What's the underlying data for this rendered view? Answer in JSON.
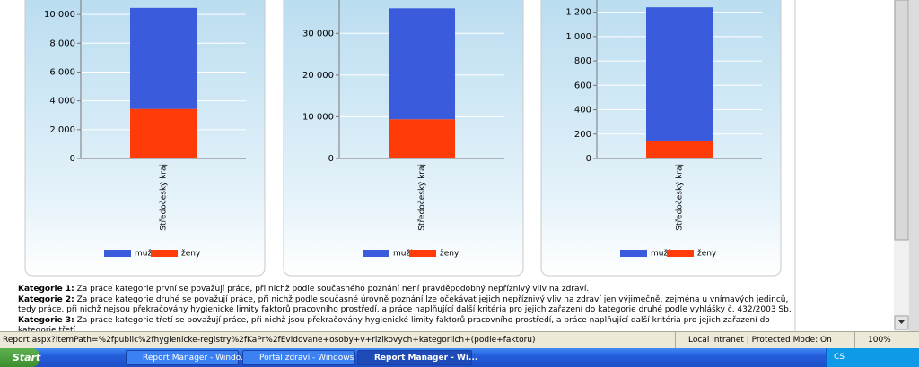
{
  "chart_data": [
    {
      "type": "bar",
      "stacked": true,
      "categories": [
        "Středočeský kraj"
      ],
      "series": [
        {
          "name": "muži",
          "color": "#3a5bdc",
          "values": [
            7010
          ]
        },
        {
          "name": "ženy",
          "color": "#ff3b0a",
          "values": [
            3440
          ]
        }
      ],
      "ylim": [
        0,
        11000
      ],
      "yticks": [
        0,
        {
          "value": 2000,
          "label": "2 000"
        },
        {
          "value": 4000,
          "label": "4 000"
        },
        {
          "value": 6000,
          "label": "6 000"
        },
        {
          "value": 8000,
          "label": "8 000"
        },
        {
          "value": 10000,
          "label": "10 000"
        }
      ],
      "grid": true,
      "legend": "bottom"
    },
    {
      "type": "bar",
      "stacked": true,
      "categories": [
        "Středočeský kraj"
      ],
      "series": [
        {
          "name": "muži",
          "color": "#3a5bdc",
          "values": [
            26600
          ]
        },
        {
          "name": "ženy",
          "color": "#ff3b0a",
          "values": [
            9400
          ]
        }
      ],
      "ylim": [
        0,
        38000
      ],
      "yticks": [
        0,
        {
          "value": 10000,
          "label": "10 000"
        },
        {
          "value": 20000,
          "label": "20 000"
        },
        {
          "value": 30000,
          "label": "30 000"
        }
      ],
      "grid": true,
      "legend": "bottom"
    },
    {
      "type": "bar",
      "stacked": true,
      "categories": [
        "Středočeský kraj"
      ],
      "series": [
        {
          "name": "muži",
          "color": "#3a5bdc",
          "values": [
            1098
          ]
        },
        {
          "name": "ženy",
          "color": "#ff3b0a",
          "values": [
            142
          ]
        }
      ],
      "ylim": [
        0,
        1300
      ],
      "yticks": [
        0,
        200,
        400,
        600,
        800,
        {
          "value": 1000,
          "label": "1 000"
        },
        {
          "value": 1200,
          "label": "1 200"
        }
      ],
      "grid": true,
      "legend": "bottom"
    }
  ],
  "page": {
    "descriptions": [
      {
        "label": "Kategorie 1:",
        "text": "Za práce kategorie první se považují práce, při nichž podle současného poznání není pravděpodobný nepříznivý vliv na zdraví."
      },
      {
        "label": "Kategorie 2:",
        "text": "Za práce kategorie druhé se považují práce, při nichž podle současné úrovně poznání lze očekávat jejich nepříznivý vliv na zdraví jen výjimečně, zejména u vnímavých jedinců, tedy práce, při nichž nejsou překračovány hygienické limity faktorů pracovního prostředí, a práce naplňující další kritéria pro jejich zařazení do kategorie druhé podle vyhlášky č. 432/2003 Sb."
      },
      {
        "label": "Kategorie 3:",
        "text": "Za práce kategorie třetí se považují práce, při nichž jsou překračovány hygienické limity faktorů pracovního prostředí, a práce naplňující další kritéria pro jejich zařazení do kategorie třetí"
      }
    ],
    "status_url": "Report.aspx?ItemPath=%2fpublic%2fhygienicke-registry%2fKaPr%2fEvidovane+osoby+v+rizikovych+kategoriich+(podle+faktoru)",
    "status_zone": "Local intranet | Protected Mode: On",
    "status_zoom": "100%",
    "taskbar": {
      "start": "Start",
      "tasks": [
        "Report Manager - Windo...",
        "Portál zdraví - Windows I...",
        "Report Manager - Wi..."
      ],
      "language": "CS"
    }
  }
}
